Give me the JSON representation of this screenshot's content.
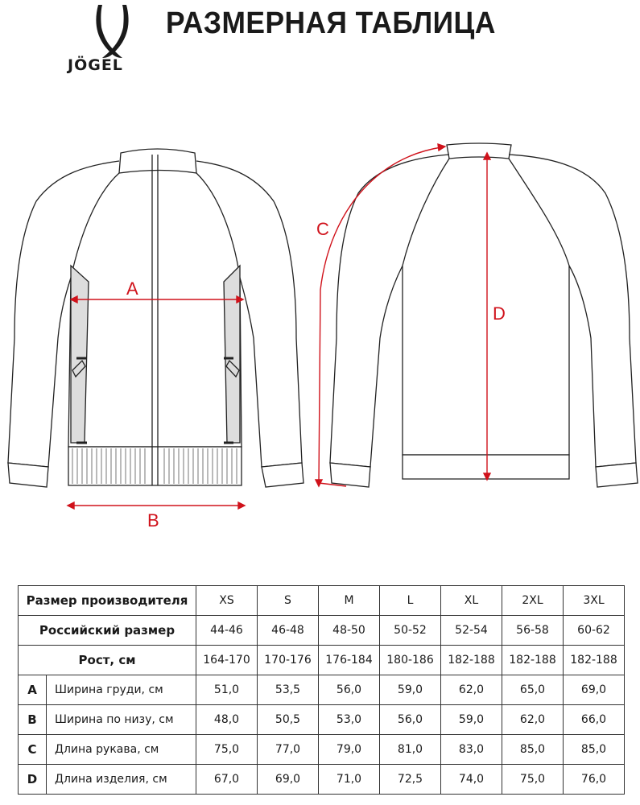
{
  "header": {
    "brand": "JÖGEL",
    "title": "РАЗМЕРНАЯ ТАБЛИЦА"
  },
  "diagram": {
    "labels": {
      "A": "A",
      "B": "B",
      "C": "C",
      "D": "D"
    },
    "measure_color": "#d0121b"
  },
  "table": {
    "rows_header": [
      {
        "label": "Размер производителя",
        "values": [
          "XS",
          "S",
          "M",
          "L",
          "XL",
          "2XL",
          "3XL"
        ]
      },
      {
        "label": "Российский размер",
        "values": [
          "44-46",
          "46-48",
          "48-50",
          "50-52",
          "52-54",
          "56-58",
          "60-62"
        ]
      },
      {
        "label": "Рост, см",
        "values": [
          "164-170",
          "170-176",
          "176-184",
          "180-186",
          "182-188",
          "182-188",
          "182-188"
        ]
      }
    ],
    "rows": [
      {
        "letter": "A",
        "label": "Ширина груди, см",
        "values": [
          "51,0",
          "53,5",
          "56,0",
          "59,0",
          "62,0",
          "65,0",
          "69,0"
        ]
      },
      {
        "letter": "B",
        "label": "Ширина по низу, см",
        "values": [
          "48,0",
          "50,5",
          "53,0",
          "56,0",
          "59,0",
          "62,0",
          "66,0"
        ]
      },
      {
        "letter": "C",
        "label": "Длина рукава, см",
        "values": [
          "75,0",
          "77,0",
          "79,0",
          "81,0",
          "83,0",
          "85,0",
          "85,0"
        ]
      },
      {
        "letter": "D",
        "label": "Длина изделия, см",
        "values": [
          "67,0",
          "69,0",
          "71,0",
          "72,5",
          "74,0",
          "75,0",
          "76,0"
        ]
      }
    ]
  }
}
